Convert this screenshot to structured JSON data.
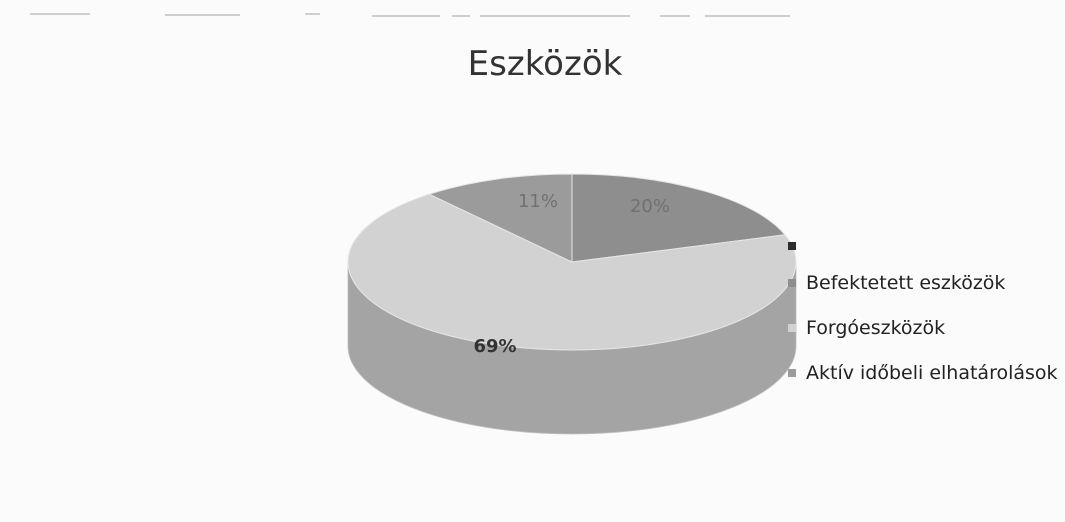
{
  "chart_data": {
    "type": "pie",
    "title": "Eszközök",
    "categories": [
      "",
      "Befektetett eszközök",
      "Forgóeszközök",
      "Aktív időbeli elhatárolások"
    ],
    "values": [
      0,
      20,
      69,
      11
    ],
    "data_labels": [
      "",
      "20%",
      "69%",
      "11%"
    ],
    "colors": [
      "#2c2c2c",
      "#8e8e8e",
      "#d2d2d2",
      "#9b9b9b"
    ],
    "legend_position": "right",
    "style": "3d"
  }
}
